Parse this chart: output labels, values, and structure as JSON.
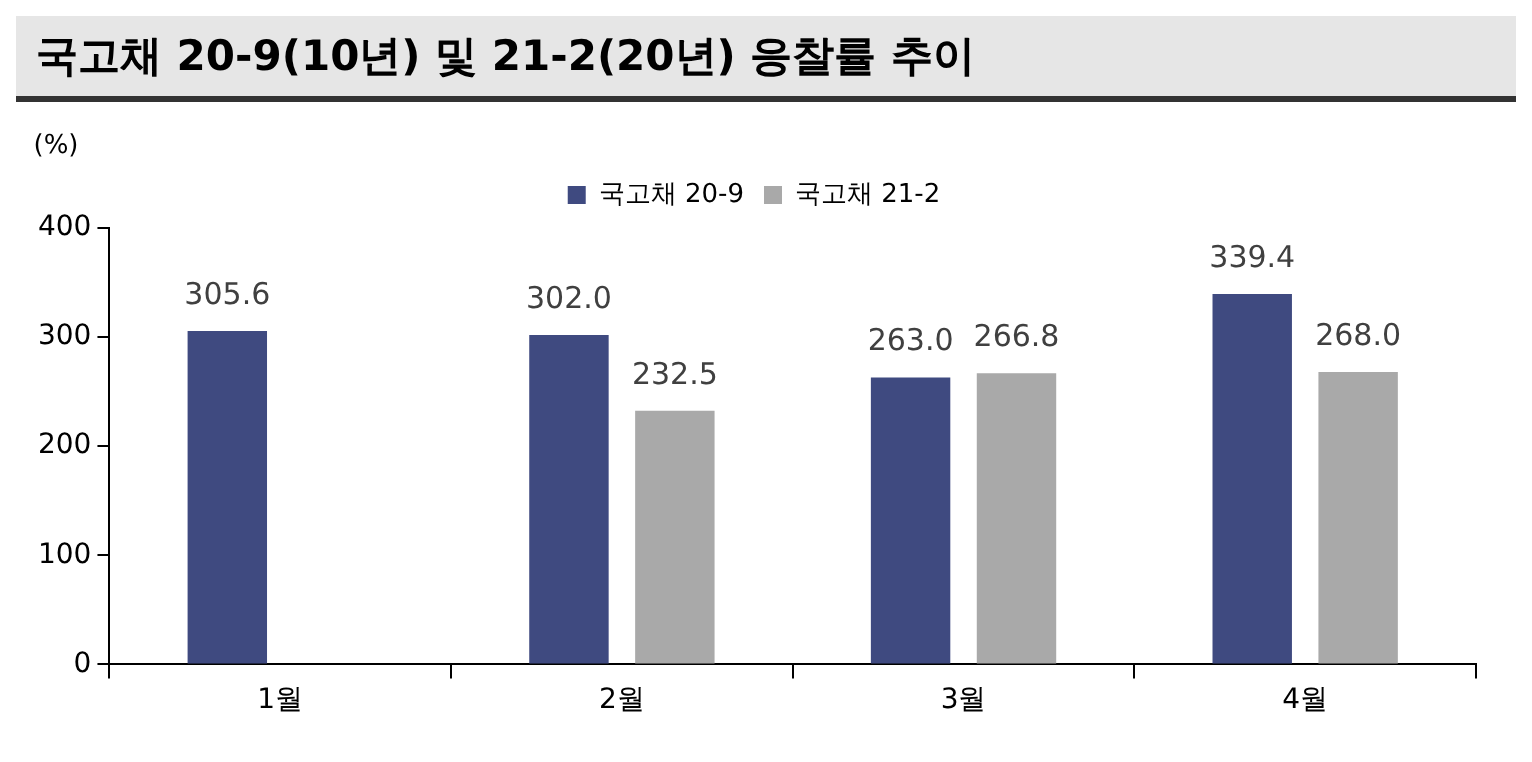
{
  "chart_data": {
    "type": "bar",
    "title": "국고채 20-9(10년) 및 21-2(20년) 응찰률 추이",
    "ylabel": "(%)",
    "categories": [
      "1월",
      "2월",
      "3월",
      "4월"
    ],
    "series": [
      {
        "name": "국고채 20-9",
        "color": "#3f4a80",
        "values": [
          305.6,
          302.0,
          263.0,
          339.4
        ],
        "value_labels": [
          "305.6",
          "302.0",
          "263.0",
          "339.4"
        ]
      },
      {
        "name": "국고채 21-2",
        "color": "#a9a9a9",
        "values": [
          null,
          232.5,
          266.8,
          268.0
        ],
        "value_labels": [
          null,
          "232.5",
          "266.8",
          "268.0"
        ]
      }
    ],
    "ylim": [
      0,
      400
    ],
    "yticks": [
      0,
      100,
      200,
      300,
      400
    ],
    "grid": false,
    "legend": "top"
  }
}
